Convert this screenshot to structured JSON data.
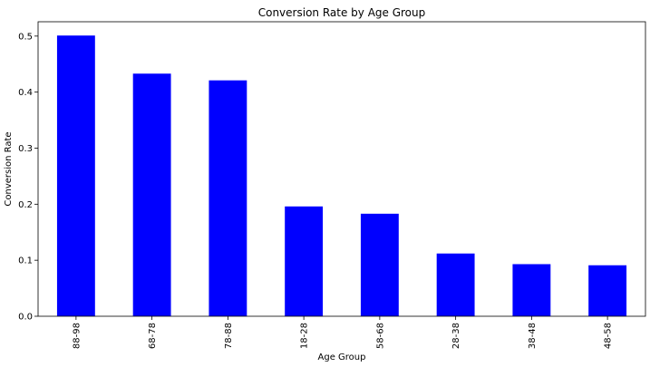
{
  "chart_data": {
    "type": "bar",
    "title": "Conversion Rate by Age Group",
    "xlabel": "Age Group",
    "ylabel": "Conversion Rate",
    "categories": [
      "88-98",
      "68-78",
      "78-88",
      "18-28",
      "58-68",
      "28-38",
      "38-48",
      "48-58"
    ],
    "values": [
      0.501,
      0.433,
      0.421,
      0.196,
      0.183,
      0.112,
      0.093,
      0.091
    ],
    "ylim": [
      0,
      0.5256
    ],
    "yticks": [
      0.0,
      0.1,
      0.2,
      0.3,
      0.4,
      0.5
    ],
    "ytick_labels": [
      "0.0",
      "0.1",
      "0.2",
      "0.3",
      "0.4",
      "0.5"
    ],
    "grid": false,
    "legend": "none",
    "bar_color": "#0000ff"
  }
}
